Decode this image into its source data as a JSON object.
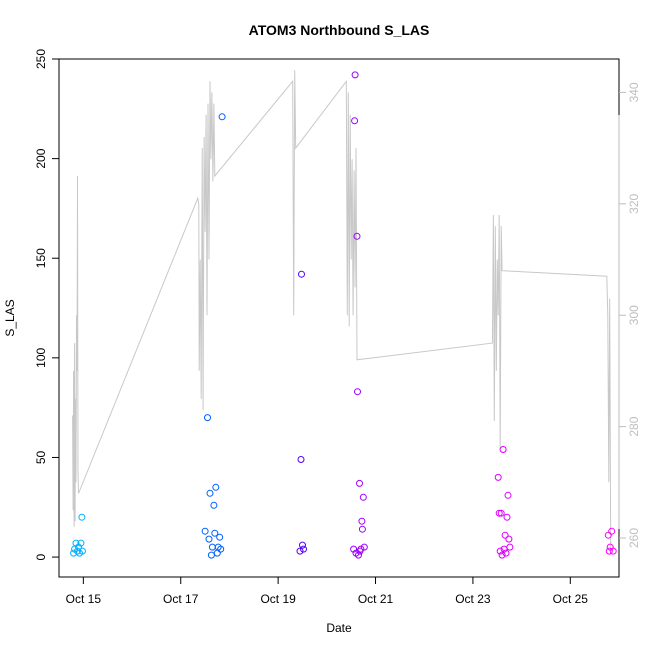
{
  "chart_data": {
    "type": "scatter",
    "title": "ATOM3 Northbound S_LAS",
    "xlabel": "Date",
    "ylabel": "S_LAS",
    "x_ticks": [
      {
        "day": 14.9,
        "label": "Oct 15"
      },
      {
        "day": 16.9,
        "label": "Oct 17"
      },
      {
        "day": 18.9,
        "label": "Oct 19"
      },
      {
        "day": 20.9,
        "label": "Oct 21"
      },
      {
        "day": 22.9,
        "label": "Oct 23"
      },
      {
        "day": 24.9,
        "label": "Oct 25"
      }
    ],
    "xlim": [
      14.4,
      25.9
    ],
    "ylim": [
      -10,
      250
    ],
    "y_ticks": [
      0,
      50,
      100,
      150,
      200,
      250
    ],
    "y2lim": [
      253,
      346
    ],
    "y2_ticks": [
      260,
      280,
      300,
      320,
      340
    ],
    "color_scale": [
      "#00b0ff",
      "#0055ff",
      "#5500ff",
      "#aa00ff",
      "#ff00ff"
    ],
    "points": [
      {
        "day": 14.7,
        "value": 2,
        "c": 0.0
      },
      {
        "day": 14.72,
        "value": 4,
        "c": 0.0
      },
      {
        "day": 14.75,
        "value": 7,
        "c": 0.0
      },
      {
        "day": 14.78,
        "value": 3,
        "c": 0.0
      },
      {
        "day": 14.8,
        "value": 5,
        "c": 0.0
      },
      {
        "day": 14.82,
        "value": 2,
        "c": 0.0
      },
      {
        "day": 14.85,
        "value": 7,
        "c": 0.0
      },
      {
        "day": 14.87,
        "value": 20,
        "c": 0.0
      },
      {
        "day": 14.88,
        "value": 3,
        "c": 0.0
      },
      {
        "day": 17.4,
        "value": 13,
        "c": 0.22
      },
      {
        "day": 17.45,
        "value": 70,
        "c": 0.22
      },
      {
        "day": 17.48,
        "value": 9,
        "c": 0.22
      },
      {
        "day": 17.5,
        "value": 32,
        "c": 0.22
      },
      {
        "day": 17.53,
        "value": 1,
        "c": 0.22
      },
      {
        "day": 17.55,
        "value": 5,
        "c": 0.22
      },
      {
        "day": 17.58,
        "value": 26,
        "c": 0.22
      },
      {
        "day": 17.6,
        "value": 12,
        "c": 0.22
      },
      {
        "day": 17.62,
        "value": 35,
        "c": 0.22
      },
      {
        "day": 17.65,
        "value": 2,
        "c": 0.22
      },
      {
        "day": 17.67,
        "value": 5,
        "c": 0.22
      },
      {
        "day": 17.7,
        "value": 10,
        "c": 0.22
      },
      {
        "day": 17.72,
        "value": 4,
        "c": 0.22
      },
      {
        "day": 17.75,
        "value": 221,
        "c": 0.22
      },
      {
        "day": 19.35,
        "value": 3,
        "c": 0.5
      },
      {
        "day": 19.37,
        "value": 49,
        "c": 0.5
      },
      {
        "day": 19.38,
        "value": 142,
        "c": 0.5
      },
      {
        "day": 19.4,
        "value": 6,
        "c": 0.5
      },
      {
        "day": 19.42,
        "value": 4,
        "c": 0.5
      },
      {
        "day": 20.45,
        "value": 4,
        "c": 0.7
      },
      {
        "day": 20.47,
        "value": 219,
        "c": 0.7
      },
      {
        "day": 20.48,
        "value": 242,
        "c": 0.7
      },
      {
        "day": 20.5,
        "value": 2,
        "c": 0.7
      },
      {
        "day": 20.52,
        "value": 161,
        "c": 0.7
      },
      {
        "day": 20.53,
        "value": 83,
        "c": 0.7
      },
      {
        "day": 20.55,
        "value": 1,
        "c": 0.72
      },
      {
        "day": 20.57,
        "value": 37,
        "c": 0.72
      },
      {
        "day": 20.58,
        "value": 3,
        "c": 0.72
      },
      {
        "day": 20.6,
        "value": 4,
        "c": 0.72
      },
      {
        "day": 20.62,
        "value": 18,
        "c": 0.72
      },
      {
        "day": 20.63,
        "value": 14,
        "c": 0.72
      },
      {
        "day": 20.65,
        "value": 30,
        "c": 0.72
      },
      {
        "day": 20.67,
        "value": 5,
        "c": 0.72
      },
      {
        "day": 23.42,
        "value": 40,
        "c": 0.9
      },
      {
        "day": 23.44,
        "value": 22,
        "c": 0.9
      },
      {
        "day": 23.46,
        "value": 3,
        "c": 0.9
      },
      {
        "day": 23.48,
        "value": 22,
        "c": 0.9
      },
      {
        "day": 23.5,
        "value": 1,
        "c": 0.9
      },
      {
        "day": 23.52,
        "value": 54,
        "c": 0.9
      },
      {
        "day": 23.54,
        "value": 4,
        "c": 0.9
      },
      {
        "day": 23.56,
        "value": 11,
        "c": 0.9
      },
      {
        "day": 23.58,
        "value": 2,
        "c": 0.9
      },
      {
        "day": 23.6,
        "value": 20,
        "c": 0.9
      },
      {
        "day": 23.62,
        "value": 31,
        "c": 0.9
      },
      {
        "day": 23.64,
        "value": 9,
        "c": 0.9
      },
      {
        "day": 23.66,
        "value": 5,
        "c": 0.9
      },
      {
        "day": 25.68,
        "value": 11,
        "c": 1.0
      },
      {
        "day": 25.7,
        "value": 3,
        "c": 1.0
      },
      {
        "day": 25.72,
        "value": 5,
        "c": 1.0
      },
      {
        "day": 25.75,
        "value": 13,
        "c": 1.0
      },
      {
        "day": 25.78,
        "value": 3,
        "c": 1.0
      }
    ],
    "secondary_line": {
      "color": "#c8c8c8",
      "points": [
        [
          14.68,
          282
        ],
        [
          14.69,
          265
        ],
        [
          14.7,
          290
        ],
        [
          14.71,
          262
        ],
        [
          14.72,
          295
        ],
        [
          14.73,
          263
        ],
        [
          14.74,
          285
        ],
        [
          14.75,
          270
        ],
        [
          14.76,
          300
        ],
        [
          14.77,
          290
        ],
        [
          14.78,
          325
        ],
        [
          14.79,
          272
        ],
        [
          14.8,
          268
        ],
        [
          17.25,
          321
        ],
        [
          17.27,
          320
        ],
        [
          17.28,
          290
        ],
        [
          17.3,
          310
        ],
        [
          17.32,
          285
        ],
        [
          17.34,
          330
        ],
        [
          17.36,
          283
        ],
        [
          17.38,
          332
        ],
        [
          17.4,
          315
        ],
        [
          17.42,
          336
        ],
        [
          17.44,
          300
        ],
        [
          17.46,
          338
        ],
        [
          17.48,
          310
        ],
        [
          17.5,
          342
        ],
        [
          17.52,
          328
        ],
        [
          17.54,
          340
        ],
        [
          17.56,
          324
        ],
        [
          17.58,
          338
        ],
        [
          17.6,
          325
        ],
        [
          19.2,
          342
        ],
        [
          19.22,
          300
        ],
        [
          19.24,
          344
        ],
        [
          19.26,
          330
        ],
        [
          20.3,
          342
        ],
        [
          20.32,
          300
        ],
        [
          20.34,
          340
        ],
        [
          20.36,
          298
        ],
        [
          20.38,
          336
        ],
        [
          20.4,
          310
        ],
        [
          20.42,
          328
        ],
        [
          20.44,
          300
        ],
        [
          20.46,
          326
        ],
        [
          20.48,
          305
        ],
        [
          20.5,
          330
        ],
        [
          20.52,
          292
        ],
        [
          23.3,
          295
        ],
        [
          23.32,
          318
        ],
        [
          23.34,
          281
        ],
        [
          23.36,
          316
        ],
        [
          23.38,
          290
        ],
        [
          23.4,
          310
        ],
        [
          23.42,
          300
        ],
        [
          23.44,
          318
        ],
        [
          23.46,
          276
        ],
        [
          23.48,
          316
        ],
        [
          23.5,
          308
        ],
        [
          25.65,
          307
        ],
        [
          25.67,
          300
        ],
        [
          25.69,
          270
        ],
        [
          25.71,
          303
        ],
        [
          25.73,
          258
        ]
      ]
    }
  }
}
